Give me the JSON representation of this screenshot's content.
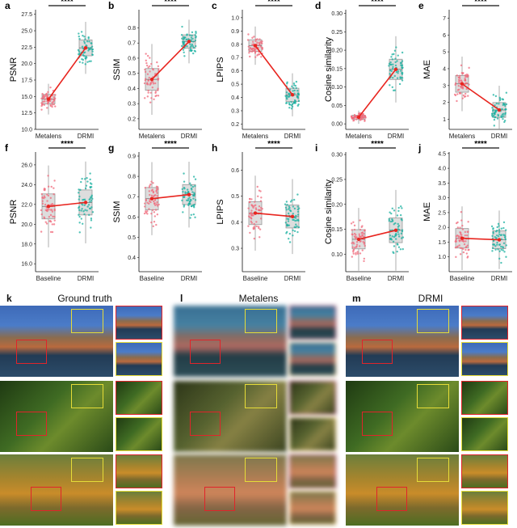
{
  "charts": [
    {
      "letter": "a",
      "ylabel": "PSNR",
      "yticks": [
        "10.0",
        "12.5",
        "15.0",
        "17.5",
        "20.0",
        "22.5",
        "25.0",
        "27.5"
      ],
      "ylim": [
        10,
        28.2
      ],
      "categories": [
        "Metalens",
        "DRMI"
      ],
      "means": [
        14.6,
        22.4
      ],
      "spread": [
        1.3,
        2.2
      ],
      "sig": "****"
    },
    {
      "letter": "b",
      "ylabel": "SSIM",
      "yticks": [
        "0.2",
        "0.3",
        "0.4",
        "0.5",
        "0.6",
        "0.7",
        "0.8"
      ],
      "ylim": [
        0.13,
        0.92
      ],
      "categories": [
        "Metalens",
        "DRMI"
      ],
      "means": [
        0.46,
        0.71
      ],
      "spread": [
        0.13,
        0.08
      ],
      "sig": "****"
    },
    {
      "letter": "c",
      "ylabel": "LPIPS",
      "yticks": [
        "0.2",
        "0.3",
        "0.4",
        "0.5",
        "0.6",
        "0.7",
        "0.8",
        "0.9",
        "1.0"
      ],
      "ylim": [
        0.16,
        1.06
      ],
      "categories": [
        "Metalens",
        "DRMI"
      ],
      "means": [
        0.79,
        0.42
      ],
      "spread": [
        0.08,
        0.09
      ],
      "sig": "****"
    },
    {
      "letter": "d",
      "ylabel": "Cosine similarity",
      "yticks": [
        "0.00",
        "0.05",
        "0.10",
        "0.15",
        "0.20",
        "0.25",
        "0.30"
      ],
      "ylim": [
        -0.015,
        0.31
      ],
      "categories": [
        "Metalens",
        "DRMI"
      ],
      "means": [
        0.018,
        0.148
      ],
      "spread": [
        0.01,
        0.05
      ],
      "sig": "****"
    },
    {
      "letter": "e",
      "ylabel": "MAE",
      "yticks": [
        "1",
        "2",
        "3",
        "4",
        "5",
        "6",
        "7"
      ],
      "ylim": [
        0.4,
        7.5
      ],
      "categories": [
        "Metalens",
        "DRMI"
      ],
      "means": [
        3.1,
        1.55
      ],
      "spread": [
        0.9,
        0.8
      ],
      "sig": "****"
    },
    {
      "letter": "f",
      "ylabel": "PSNR",
      "yticks": [
        "16.0",
        "18.0",
        "20.0",
        "22.0",
        "24.0",
        "26.0"
      ],
      "ylim": [
        15.2,
        27.3
      ],
      "categories": [
        "Baseline",
        "DRMI"
      ],
      "means": [
        21.8,
        22.2
      ],
      "spread": [
        2.3,
        2.3
      ],
      "sig": "****"
    },
    {
      "letter": "g",
      "ylabel": "SSIM",
      "yticks": [
        "0.4",
        "0.5",
        "0.6",
        "0.7",
        "0.8",
        "0.9"
      ],
      "ylim": [
        0.33,
        0.92
      ],
      "categories": [
        "Baseline",
        "DRMI"
      ],
      "means": [
        0.69,
        0.71
      ],
      "spread": [
        0.1,
        0.09
      ],
      "sig": "****"
    },
    {
      "letter": "h",
      "ylabel": "LPIPS",
      "yticks": [
        "0.3",
        "0.4",
        "0.5",
        "0.6"
      ],
      "ylim": [
        0.21,
        0.67
      ],
      "categories": [
        "Baseline",
        "DRMI"
      ],
      "means": [
        0.435,
        0.422
      ],
      "spread": [
        0.08,
        0.08
      ],
      "sig": "****"
    },
    {
      "letter": "i",
      "ylabel": "Cosine similarity",
      "yticks": [
        "0.10",
        "0.15",
        "0.20",
        "0.25",
        "0.30"
      ],
      "ylim": [
        0.065,
        0.305
      ],
      "categories": [
        "Baseline",
        "DRMI"
      ],
      "means": [
        0.13,
        0.148
      ],
      "spread": [
        0.035,
        0.045
      ],
      "sig": "****"
    },
    {
      "letter": "j",
      "ylabel": "MAE",
      "yticks": [
        "1.0",
        "1.5",
        "2.0",
        "2.5",
        "3.0",
        "3.5",
        "4.0",
        "4.5"
      ],
      "ylim": [
        0.5,
        4.55
      ],
      "categories": [
        "Baseline",
        "DRMI"
      ],
      "means": [
        1.63,
        1.58
      ],
      "spread": [
        0.6,
        0.55
      ],
      "sig": "****"
    }
  ],
  "panels": [
    {
      "letter": "k",
      "title": "Ground truth"
    },
    {
      "letter": "l",
      "title": "Metalens"
    },
    {
      "letter": "m",
      "title": "DRMI"
    }
  ],
  "colors": {
    "left": "#f06a7b",
    "right": "#1ab0a0",
    "mean_line": "#e8251f",
    "zoom_red": "#e0242a",
    "zoom_yellow": "#e6dc38"
  }
}
